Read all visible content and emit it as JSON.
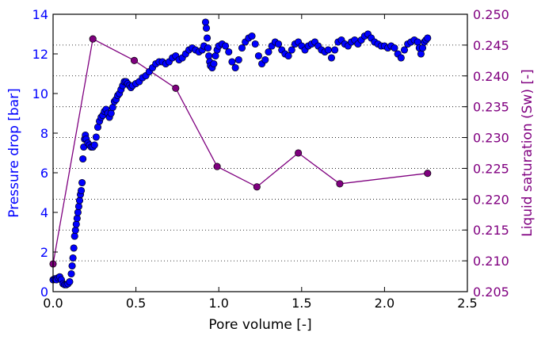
{
  "chart_data": {
    "type": "scatter+line",
    "title": "",
    "xlabel": "Pore volume [-]",
    "ylabel_left": "Pressure drop [bar]",
    "ylabel_right": "Liquid saturation (Sw) [-]",
    "xlim": [
      0.0,
      2.5
    ],
    "ylim_left": [
      0,
      14
    ],
    "ylim_right": [
      0.205,
      0.25
    ],
    "x_ticks": [
      "0.0",
      "0.5",
      "1.0",
      "1.5",
      "2.0",
      "2.5"
    ],
    "y_left_ticks": [
      "0",
      "2",
      "4",
      "6",
      "8",
      "10",
      "12",
      "14"
    ],
    "y_right_ticks": [
      "0.205",
      "0.210",
      "0.215",
      "0.220",
      "0.225",
      "0.230",
      "0.235",
      "0.240",
      "0.245",
      "0.250"
    ],
    "grid": "horizontal dotted (right axis)",
    "colors": {
      "left_axis": "#0000ff",
      "right_axis": "#800080",
      "marker_fill": "#0000ff",
      "marker_edge": "#000000",
      "saturation_line": "#7f007f"
    },
    "series": [
      {
        "axis": "left",
        "style": "markers",
        "points": [
          [
            0.0,
            0.6
          ],
          [
            0.01,
            0.65
          ],
          [
            0.02,
            0.6
          ],
          [
            0.03,
            0.7
          ],
          [
            0.04,
            0.75
          ],
          [
            0.05,
            0.6
          ],
          [
            0.06,
            0.4
          ],
          [
            0.07,
            0.35
          ],
          [
            0.08,
            0.35
          ],
          [
            0.09,
            0.4
          ],
          [
            0.1,
            0.5
          ],
          [
            0.11,
            0.9
          ],
          [
            0.115,
            1.3
          ],
          [
            0.12,
            1.7
          ],
          [
            0.125,
            2.2
          ],
          [
            0.13,
            2.8
          ],
          [
            0.135,
            3.1
          ],
          [
            0.14,
            3.4
          ],
          [
            0.145,
            3.7
          ],
          [
            0.15,
            4.0
          ],
          [
            0.155,
            4.3
          ],
          [
            0.16,
            4.6
          ],
          [
            0.165,
            4.9
          ],
          [
            0.17,
            5.1
          ],
          [
            0.175,
            5.5
          ],
          [
            0.18,
            6.7
          ],
          [
            0.185,
            7.3
          ],
          [
            0.19,
            7.7
          ],
          [
            0.195,
            7.9
          ],
          [
            0.2,
            7.7
          ],
          [
            0.21,
            7.5
          ],
          [
            0.22,
            7.4
          ],
          [
            0.23,
            7.3
          ],
          [
            0.24,
            7.3
          ],
          [
            0.25,
            7.4
          ],
          [
            0.26,
            7.8
          ],
          [
            0.27,
            8.3
          ],
          [
            0.28,
            8.6
          ],
          [
            0.29,
            8.8
          ],
          [
            0.3,
            8.9
          ],
          [
            0.31,
            9.1
          ],
          [
            0.32,
            9.2
          ],
          [
            0.33,
            9.0
          ],
          [
            0.34,
            8.8
          ],
          [
            0.35,
            9.0
          ],
          [
            0.36,
            9.3
          ],
          [
            0.37,
            9.6
          ],
          [
            0.38,
            9.7
          ],
          [
            0.39,
            9.9
          ],
          [
            0.4,
            10.0
          ],
          [
            0.41,
            10.2
          ],
          [
            0.42,
            10.4
          ],
          [
            0.43,
            10.6
          ],
          [
            0.44,
            10.6
          ],
          [
            0.45,
            10.5
          ],
          [
            0.46,
            10.4
          ],
          [
            0.47,
            10.3
          ],
          [
            0.48,
            10.4
          ],
          [
            0.5,
            10.5
          ],
          [
            0.52,
            10.6
          ],
          [
            0.54,
            10.8
          ],
          [
            0.56,
            10.9
          ],
          [
            0.58,
            11.1
          ],
          [
            0.6,
            11.3
          ],
          [
            0.62,
            11.5
          ],
          [
            0.64,
            11.6
          ],
          [
            0.66,
            11.6
          ],
          [
            0.68,
            11.5
          ],
          [
            0.7,
            11.6
          ],
          [
            0.72,
            11.8
          ],
          [
            0.74,
            11.9
          ],
          [
            0.76,
            11.7
          ],
          [
            0.78,
            11.8
          ],
          [
            0.8,
            12.0
          ],
          [
            0.82,
            12.2
          ],
          [
            0.84,
            12.3
          ],
          [
            0.86,
            12.2
          ],
          [
            0.88,
            12.1
          ],
          [
            0.9,
            12.2
          ],
          [
            0.91,
            12.4
          ],
          [
            0.92,
            13.6
          ],
          [
            0.925,
            13.3
          ],
          [
            0.93,
            12.8
          ],
          [
            0.935,
            12.3
          ],
          [
            0.94,
            11.9
          ],
          [
            0.945,
            11.6
          ],
          [
            0.95,
            11.4
          ],
          [
            0.96,
            11.3
          ],
          [
            0.97,
            11.5
          ],
          [
            0.98,
            11.9
          ],
          [
            0.99,
            12.2
          ],
          [
            1.0,
            12.4
          ],
          [
            1.02,
            12.5
          ],
          [
            1.04,
            12.4
          ],
          [
            1.06,
            12.1
          ],
          [
            1.08,
            11.6
          ],
          [
            1.1,
            11.3
          ],
          [
            1.12,
            11.7
          ],
          [
            1.14,
            12.3
          ],
          [
            1.16,
            12.6
          ],
          [
            1.18,
            12.8
          ],
          [
            1.2,
            12.9
          ],
          [
            1.22,
            12.5
          ],
          [
            1.24,
            11.9
          ],
          [
            1.26,
            11.5
          ],
          [
            1.28,
            11.7
          ],
          [
            1.3,
            12.1
          ],
          [
            1.32,
            12.4
          ],
          [
            1.34,
            12.6
          ],
          [
            1.36,
            12.5
          ],
          [
            1.38,
            12.2
          ],
          [
            1.4,
            12.0
          ],
          [
            1.42,
            11.9
          ],
          [
            1.44,
            12.2
          ],
          [
            1.46,
            12.5
          ],
          [
            1.48,
            12.6
          ],
          [
            1.5,
            12.4
          ],
          [
            1.52,
            12.2
          ],
          [
            1.54,
            12.4
          ],
          [
            1.56,
            12.5
          ],
          [
            1.58,
            12.6
          ],
          [
            1.6,
            12.4
          ],
          [
            1.62,
            12.2
          ],
          [
            1.64,
            12.1
          ],
          [
            1.66,
            12.2
          ],
          [
            1.68,
            11.8
          ],
          [
            1.7,
            12.2
          ],
          [
            1.72,
            12.6
          ],
          [
            1.74,
            12.7
          ],
          [
            1.76,
            12.5
          ],
          [
            1.78,
            12.4
          ],
          [
            1.8,
            12.6
          ],
          [
            1.82,
            12.7
          ],
          [
            1.84,
            12.5
          ],
          [
            1.86,
            12.7
          ],
          [
            1.88,
            12.9
          ],
          [
            1.9,
            13.0
          ],
          [
            1.92,
            12.8
          ],
          [
            1.94,
            12.6
          ],
          [
            1.96,
            12.5
          ],
          [
            1.98,
            12.4
          ],
          [
            2.0,
            12.4
          ],
          [
            2.02,
            12.3
          ],
          [
            2.04,
            12.4
          ],
          [
            2.06,
            12.3
          ],
          [
            2.08,
            12.0
          ],
          [
            2.1,
            11.8
          ],
          [
            2.12,
            12.2
          ],
          [
            2.14,
            12.5
          ],
          [
            2.16,
            12.6
          ],
          [
            2.18,
            12.7
          ],
          [
            2.2,
            12.6
          ],
          [
            2.21,
            12.3
          ],
          [
            2.22,
            12.0
          ],
          [
            2.23,
            12.3
          ],
          [
            2.24,
            12.6
          ],
          [
            2.25,
            12.7
          ],
          [
            2.26,
            12.8
          ]
        ]
      },
      {
        "axis": "right",
        "style": "line+markers",
        "x": [
          0.0,
          0.24,
          0.49,
          0.74,
          0.99,
          1.23,
          1.48,
          1.73,
          2.26
        ],
        "y": [
          0.2095,
          0.246,
          0.2425,
          0.238,
          0.2253,
          0.222,
          0.2275,
          0.2225,
          0.2242
        ]
      }
    ]
  }
}
